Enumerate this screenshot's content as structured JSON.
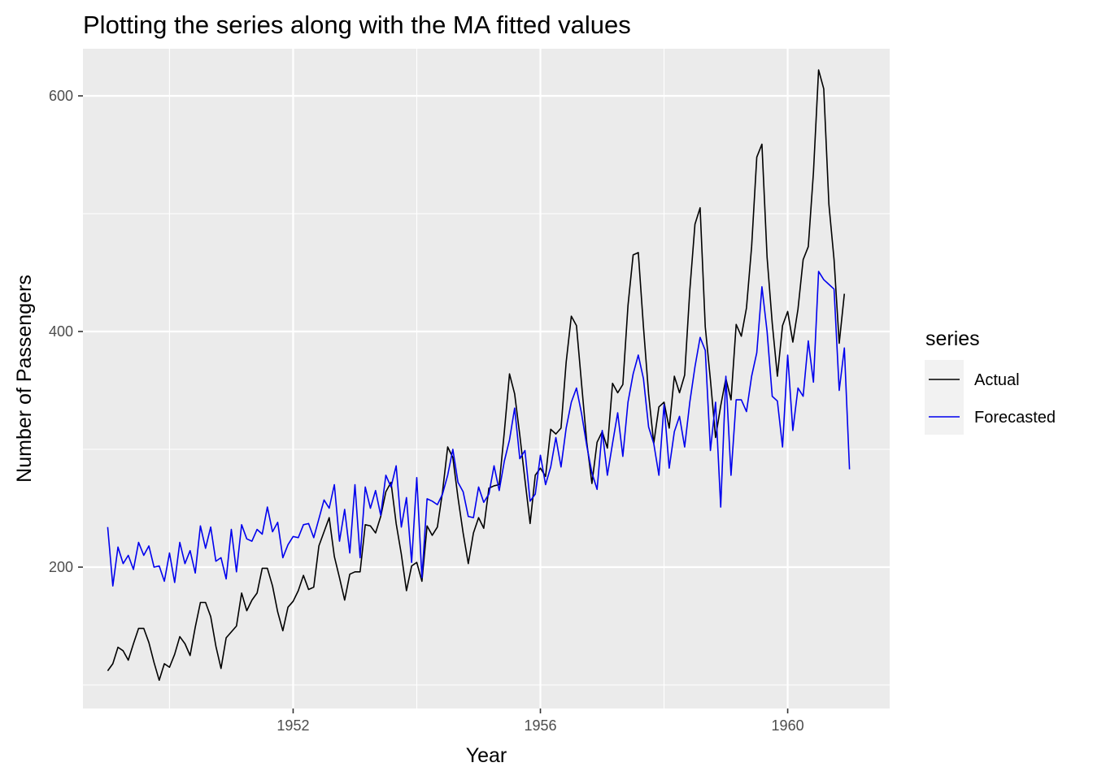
{
  "chart_data": {
    "type": "line",
    "title": "Plotting the series along with the MA fitted values",
    "xlabel": "Year",
    "ylabel": "Number of Passengers",
    "x_ticks": [
      1952,
      1956,
      1960
    ],
    "y_ticks": [
      200,
      400,
      600
    ],
    "xlim": [
      1948.6,
      1961.65
    ],
    "ylim": [
      80,
      640
    ],
    "grid": true,
    "legend": {
      "title": "series",
      "position": "right"
    },
    "series": [
      {
        "name": "Actual",
        "color": "#000000",
        "start": 1949,
        "frequency": 12,
        "values": [
          112,
          118,
          132,
          129,
          121,
          135,
          148,
          148,
          136,
          119,
          104,
          118,
          115,
          126,
          141,
          135,
          125,
          149,
          170,
          170,
          158,
          133,
          114,
          140,
          145,
          150,
          178,
          163,
          172,
          178,
          199,
          199,
          184,
          162,
          146,
          166,
          171,
          180,
          193,
          181,
          183,
          218,
          230,
          242,
          209,
          191,
          172,
          194,
          196,
          196,
          236,
          235,
          229,
          243,
          264,
          272,
          237,
          211,
          180,
          201,
          204,
          188,
          235,
          227,
          234,
          264,
          302,
          293,
          259,
          229,
          203,
          229,
          242,
          233,
          267,
          269,
          270,
          315,
          364,
          347,
          312,
          274,
          237,
          278,
          284,
          277,
          317,
          313,
          318,
          374,
          413,
          405,
          355,
          306,
          271,
          306,
          315,
          301,
          356,
          348,
          355,
          422,
          465,
          467,
          404,
          347,
          305,
          336,
          340,
          318,
          362,
          348,
          363,
          435,
          491,
          505,
          404,
          359,
          310,
          337,
          360,
          342,
          406,
          396,
          420,
          472,
          548,
          559,
          463,
          407,
          362,
          405,
          417,
          391,
          419,
          461,
          472,
          535,
          622,
          606,
          508,
          461,
          390,
          432
        ]
      },
      {
        "name": "Forecasted",
        "color": "#0000ee",
        "start": 1949,
        "frequency": 12,
        "values": [
          234,
          184,
          217,
          203,
          210,
          198,
          221,
          210,
          218,
          200,
          201,
          188,
          212,
          187,
          221,
          203,
          214,
          195,
          235,
          216,
          234,
          205,
          208,
          190,
          232,
          196,
          236,
          224,
          222,
          232,
          228,
          251,
          230,
          238,
          208,
          219,
          226,
          225,
          236,
          237,
          225,
          241,
          257,
          250,
          270,
          222,
          249,
          212,
          270,
          208,
          268,
          250,
          265,
          244,
          278,
          268,
          286,
          234,
          259,
          204,
          276,
          191,
          258,
          256,
          253,
          262,
          278,
          300,
          272,
          264,
          243,
          242,
          268,
          255,
          262,
          286,
          265,
          290,
          308,
          335,
          292,
          299,
          256,
          262,
          295,
          270,
          285,
          310,
          285,
          318,
          340,
          352,
          330,
          303,
          280,
          266,
          316,
          278,
          305,
          331,
          294,
          340,
          364,
          380,
          360,
          319,
          305,
          278,
          338,
          284,
          315,
          328,
          302,
          340,
          370,
          395,
          384,
          299,
          340,
          251,
          362,
          278,
          342,
          342,
          332,
          362,
          382,
          438,
          400,
          345,
          341,
          302,
          380,
          316,
          352,
          345,
          392,
          357,
          451,
          444,
          440,
          436,
          350,
          386,
          283
        ]
      }
    ]
  }
}
